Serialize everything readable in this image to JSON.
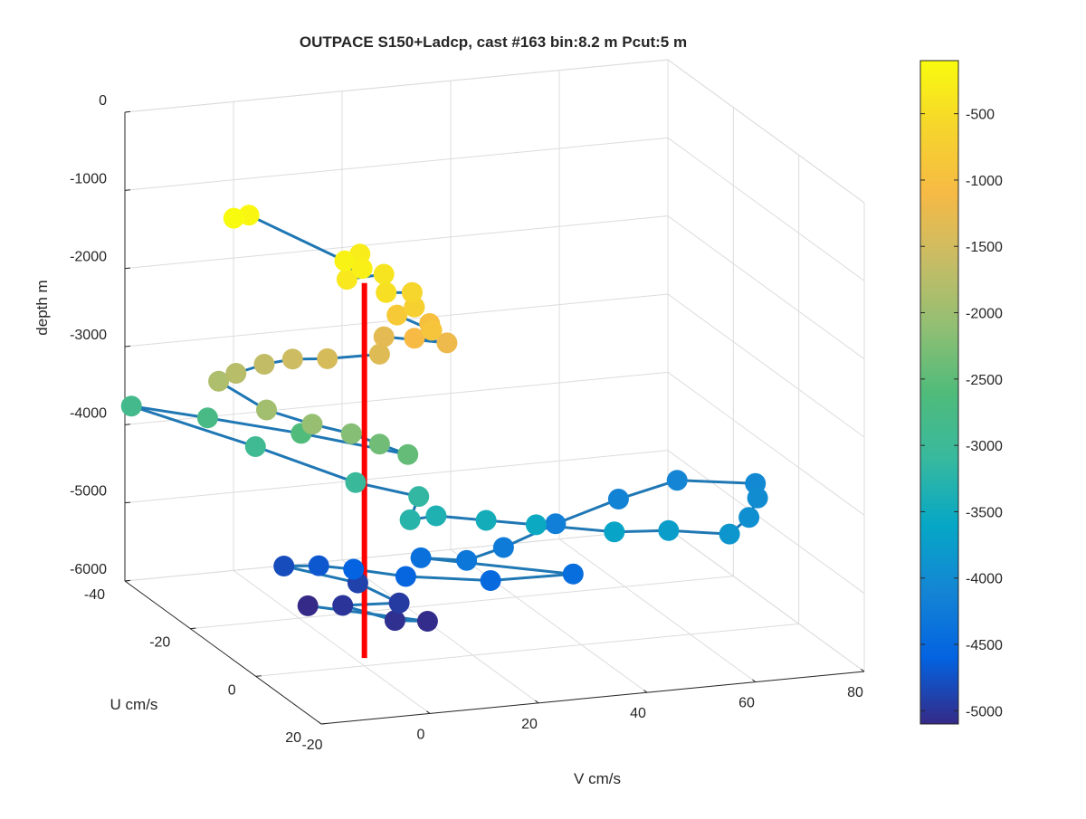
{
  "chart_data": {
    "type": "scatter3d",
    "title": "OUTPACE S150+Ladcp, cast #163 bin:8.2 m  Pcut:5 m",
    "xlabel": "V cm/s",
    "ylabel": "U cm/s",
    "zlabel": "depth m",
    "xlim": [
      -20,
      80
    ],
    "ylim": [
      -40,
      20
    ],
    "zlim": [
      -6000,
      0
    ],
    "x_ticks": [
      "-20",
      "0",
      "20",
      "40",
      "60",
      "80"
    ],
    "y_ticks": [
      "-40",
      "-20",
      "0",
      "20"
    ],
    "z_ticks": [
      "0",
      "-1000",
      "-2000",
      "-3000",
      "-4000",
      "-5000",
      "-6000"
    ],
    "grid": true,
    "colorbar": {
      "range": [
        -5100,
        -100
      ],
      "ticks": [
        "-500",
        "-1000",
        "-1500",
        "-2000",
        "-2500",
        "-3000",
        "-3500",
        "-4000",
        "-4500",
        "-5000"
      ],
      "tick_values": [
        -500,
        -1000,
        -1500,
        -2000,
        -2500,
        -3000,
        -3500,
        -4000,
        -4500,
        -5000
      ]
    },
    "reference_line": {
      "color": "#ff0000",
      "v": 0,
      "u": 0,
      "depth_range": [
        -1100,
        -5900
      ]
    },
    "connector_color": "#1f77b4",
    "points": [
      [
        -12,
        -20,
        -800,
        -100
      ],
      [
        -8,
        -22,
        -850,
        -150
      ],
      [
        0,
        -6,
        -1000,
        -200
      ],
      [
        2,
        -4,
        -1050,
        -250
      ],
      [
        4,
        -8,
        -1000,
        -300
      ],
      [
        -2,
        -2,
        -1100,
        -350
      ],
      [
        6,
        -4,
        -1150,
        -400
      ],
      [
        4,
        0,
        -1250,
        -450
      ],
      [
        10,
        -2,
        -1350,
        -600
      ],
      [
        8,
        2,
        -1400,
        -700
      ],
      [
        6,
        0,
        -1550,
        -800
      ],
      [
        10,
        4,
        -1650,
        -900
      ],
      [
        12,
        0,
        -1700,
        -1000
      ],
      [
        8,
        2,
        -1800,
        -1100
      ],
      [
        14,
        2,
        -1900,
        -1200
      ],
      [
        6,
        -4,
        -1950,
        -1300
      ],
      [
        4,
        -2,
        -2100,
        -1350
      ],
      [
        -2,
        -8,
        -2300,
        -1450
      ],
      [
        -6,
        -12,
        -2400,
        -1550
      ],
      [
        -10,
        -14,
        -2500,
        -1650
      ],
      [
        -14,
        -16,
        -2650,
        -1750
      ],
      [
        -16,
        -18,
        -2800,
        -1850
      ],
      [
        -12,
        -10,
        -2950,
        -1950
      ],
      [
        -6,
        -6,
        -3050,
        -2050
      ],
      [
        0,
        -4,
        -3150,
        -2200
      ],
      [
        4,
        -2,
        -3250,
        -2350
      ],
      [
        8,
        0,
        -3350,
        -2450
      ],
      [
        -2,
        -16,
        -3500,
        -2600
      ],
      [
        -12,
        -28,
        -3600,
        -2750
      ],
      [
        -20,
        -38,
        -3700,
        -2850
      ],
      [
        -8,
        -20,
        -3750,
        -2950
      ],
      [
        2,
        -6,
        -3850,
        -3050
      ],
      [
        10,
        0,
        -3900,
        -3150
      ],
      [
        6,
        4,
        -4050,
        -3250
      ],
      [
        12,
        2,
        -4100,
        -3350
      ],
      [
        20,
        4,
        -4150,
        -3450
      ],
      [
        28,
        6,
        -4200,
        -3550
      ],
      [
        40,
        10,
        -4250,
        -3650
      ],
      [
        50,
        10,
        -4300,
        -3750
      ],
      [
        60,
        12,
        -4350,
        -3850
      ],
      [
        66,
        8,
        -4300,
        -3950
      ],
      [
        70,
        4,
        -4200,
        -4000
      ],
      [
        72,
        0,
        -4150,
        -4050
      ],
      [
        60,
        -4,
        -4150,
        -4100
      ],
      [
        48,
        -2,
        -4250,
        -4150
      ],
      [
        34,
        2,
        -4350,
        -4200
      ],
      [
        22,
        6,
        -4450,
        -4250
      ],
      [
        14,
        8,
        -4500,
        -4300
      ],
      [
        8,
        4,
        -4550,
        -4400
      ],
      [
        30,
        14,
        -4600,
        -4450
      ],
      [
        16,
        12,
        -4650,
        -4500
      ],
      [
        4,
        6,
        -4700,
        -4550
      ],
      [
        -2,
        0,
        -4750,
        -4600
      ],
      [
        -6,
        -4,
        -4800,
        -4700
      ],
      [
        -10,
        -8,
        -4900,
        -4800
      ],
      [
        0,
        -2,
        -5000,
        -4900
      ],
      [
        4,
        4,
        -5100,
        -4950
      ],
      [
        -4,
        0,
        -5200,
        -5000
      ],
      [
        2,
        6,
        -5250,
        -5050
      ],
      [
        8,
        6,
        -5300,
        -5080
      ],
      [
        -8,
        -4,
        -5300,
        -5100
      ]
    ]
  }
}
